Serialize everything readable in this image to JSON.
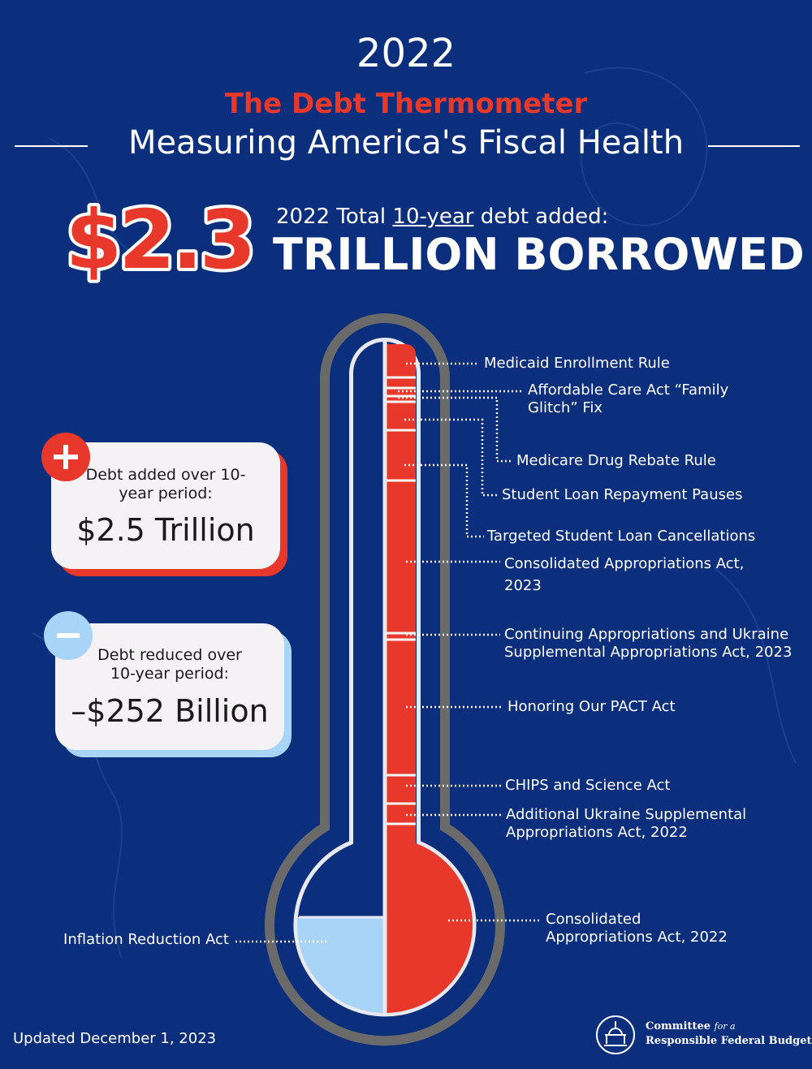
{
  "header": {
    "year": "2022",
    "title": "The Debt Thermometer",
    "subtitle": "Measuring America's Fiscal Health"
  },
  "headline": {
    "amount": "$2.3",
    "intro_before": "2022 Total",
    "intro_underlined": "10-year",
    "intro_after": "debt added:",
    "unit": "TRILLION BORROWED"
  },
  "summary": [
    {
      "label": "Debt added over 10-year period:",
      "amount": "$2.5 Trillion"
    },
    {
      "label": "Debt reduced over 10-year period:",
      "amount": "–$252 Billion"
    }
  ],
  "thermometer": {
    "labels": [
      "Medicaid Enrollment Rule",
      "Affordable Care Act “Family Glitch” Fix",
      "Medicare Drug Rebate Rule",
      "Student Loan Repayment Pauses",
      "Targeted Student Loan Cancellations",
      "Consolidated Appropriations Act, 2023",
      "Continuing Appropriations and Ukraine Supplemental Appropriations Act, 2023",
      "Honoring Our PACT Act",
      "CHIPS and Science Act",
      "Additional Ukraine Supplemental Appropriations Act, 2022",
      "Consolidated Appropriations Act, 2022",
      "Inflation Reduction Act"
    ]
  },
  "footer": {
    "updated": "Updated December 1, 2023",
    "organization": {
      "line1": "Committee",
      "line1_italic": "for a",
      "line2": "Responsible Federal Budget"
    }
  }
}
